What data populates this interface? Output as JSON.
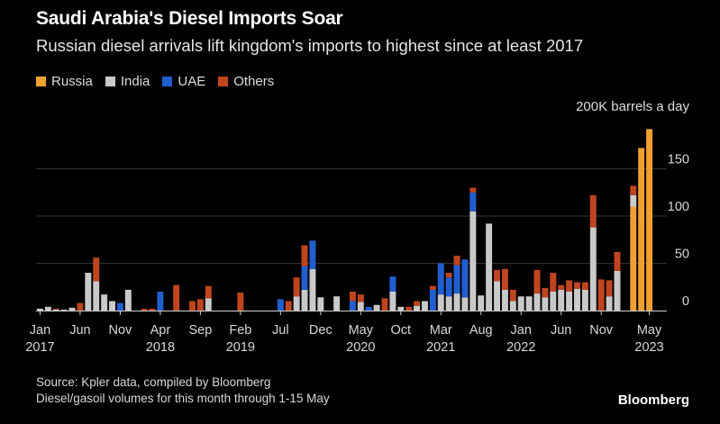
{
  "chart_data": {
    "type": "bar",
    "stacked": true,
    "title": "Saudi Arabia's Diesel Imports Soar",
    "subtitle": "Russian diesel arrivals lift kingdom's imports to highest since at least 2017",
    "unit_label": "200K barrels a day",
    "ylim": [
      0,
      200
    ],
    "yticks": [
      0,
      50,
      100,
      150
    ],
    "colors": {
      "Russia": "#f0a030",
      "India": "#c9c9c9",
      "UAE": "#1f5fd0",
      "Others": "#c0451e"
    },
    "legend": [
      "Russia",
      "India",
      "UAE",
      "Others"
    ],
    "x_ticks": [
      {
        "index": 0,
        "line1": "Jan",
        "line2": "2017"
      },
      {
        "index": 5,
        "line1": "Jun",
        "line2": ""
      },
      {
        "index": 10,
        "line1": "Nov",
        "line2": ""
      },
      {
        "index": 15,
        "line1": "Apr",
        "line2": "2018"
      },
      {
        "index": 20,
        "line1": "Sep",
        "line2": ""
      },
      {
        "index": 25,
        "line1": "Feb",
        "line2": "2019"
      },
      {
        "index": 30,
        "line1": "Jul",
        "line2": ""
      },
      {
        "index": 35,
        "line1": "Dec",
        "line2": ""
      },
      {
        "index": 40,
        "line1": "May",
        "line2": "2020"
      },
      {
        "index": 45,
        "line1": "Oct",
        "line2": ""
      },
      {
        "index": 50,
        "line1": "Mar",
        "line2": "2021"
      },
      {
        "index": 55,
        "line1": "Aug",
        "line2": ""
      },
      {
        "index": 60,
        "line1": "Jan",
        "line2": "2022"
      },
      {
        "index": 65,
        "line1": "Jun",
        "line2": ""
      },
      {
        "index": 70,
        "line1": "Nov",
        "line2": ""
      },
      {
        "index": 76,
        "line1": "May",
        "line2": "2023"
      }
    ],
    "series_order": [
      "Russia",
      "India",
      "UAE",
      "Others"
    ],
    "data": [
      {
        "Russia": 0,
        "India": 2,
        "UAE": 0,
        "Others": 0
      },
      {
        "Russia": 0,
        "India": 4,
        "UAE": 0,
        "Others": 0
      },
      {
        "Russia": 0,
        "India": 1,
        "UAE": 0,
        "Others": 1
      },
      {
        "Russia": 0,
        "India": 1,
        "UAE": 0,
        "Others": 0
      },
      {
        "Russia": 0,
        "India": 3,
        "UAE": 0,
        "Others": 0
      },
      {
        "Russia": 0,
        "India": 0,
        "UAE": 0,
        "Others": 8
      },
      {
        "Russia": 0,
        "India": 40,
        "UAE": 0,
        "Others": 0
      },
      {
        "Russia": 0,
        "India": 31,
        "UAE": 0,
        "Others": 25
      },
      {
        "Russia": 0,
        "India": 17,
        "UAE": 0,
        "Others": 0
      },
      {
        "Russia": 0,
        "India": 10,
        "UAE": 0,
        "Others": 0
      },
      {
        "Russia": 0,
        "India": 0,
        "UAE": 8,
        "Others": 0
      },
      {
        "Russia": 0,
        "India": 22,
        "UAE": 0,
        "Others": 0
      },
      {
        "Russia": 0,
        "India": 0,
        "UAE": 0,
        "Others": 0
      },
      {
        "Russia": 0,
        "India": 0,
        "UAE": 0,
        "Others": 2
      },
      {
        "Russia": 0,
        "India": 0,
        "UAE": 0,
        "Others": 2
      },
      {
        "Russia": 0,
        "India": 0,
        "UAE": 20,
        "Others": 0
      },
      {
        "Russia": 0,
        "India": 0,
        "UAE": 0,
        "Others": 0
      },
      {
        "Russia": 0,
        "India": 0,
        "UAE": 0,
        "Others": 27
      },
      {
        "Russia": 0,
        "India": 0,
        "UAE": 0,
        "Others": 0
      },
      {
        "Russia": 0,
        "India": 0,
        "UAE": 0,
        "Others": 10
      },
      {
        "Russia": 0,
        "India": 0,
        "UAE": 0,
        "Others": 12
      },
      {
        "Russia": 0,
        "India": 13,
        "UAE": 0,
        "Others": 13
      },
      {
        "Russia": 0,
        "India": 0,
        "UAE": 0,
        "Others": 0
      },
      {
        "Russia": 0,
        "India": 0,
        "UAE": 0,
        "Others": 0
      },
      {
        "Russia": 0,
        "India": 0,
        "UAE": 0,
        "Others": 0
      },
      {
        "Russia": 0,
        "India": 0,
        "UAE": 0,
        "Others": 19
      },
      {
        "Russia": 0,
        "India": 0,
        "UAE": 0,
        "Others": 0
      },
      {
        "Russia": 0,
        "India": 0,
        "UAE": 0,
        "Others": 0
      },
      {
        "Russia": 0,
        "India": 0,
        "UAE": 0,
        "Others": 0
      },
      {
        "Russia": 0,
        "India": 0,
        "UAE": 0,
        "Others": 0
      },
      {
        "Russia": 0,
        "India": 0,
        "UAE": 12,
        "Others": 0
      },
      {
        "Russia": 0,
        "India": 0,
        "UAE": 0,
        "Others": 10
      },
      {
        "Russia": 0,
        "India": 15,
        "UAE": 0,
        "Others": 20
      },
      {
        "Russia": 0,
        "India": 22,
        "UAE": 25,
        "Others": 22
      },
      {
        "Russia": 0,
        "India": 44,
        "UAE": 30,
        "Others": 0
      },
      {
        "Russia": 0,
        "India": 14,
        "UAE": 0,
        "Others": 0
      },
      {
        "Russia": 0,
        "India": 0,
        "UAE": 0,
        "Others": 0
      },
      {
        "Russia": 0,
        "India": 15,
        "UAE": 0,
        "Others": 0
      },
      {
        "Russia": 0,
        "India": 0,
        "UAE": 0,
        "Others": 0
      },
      {
        "Russia": 0,
        "India": 0,
        "UAE": 10,
        "Others": 10
      },
      {
        "Russia": 0,
        "India": 9,
        "UAE": 0,
        "Others": 8
      },
      {
        "Russia": 0,
        "India": 0,
        "UAE": 4,
        "Others": 0
      },
      {
        "Russia": 0,
        "India": 6,
        "UAE": 0,
        "Others": 0
      },
      {
        "Russia": 0,
        "India": 0,
        "UAE": 0,
        "Others": 13
      },
      {
        "Russia": 0,
        "India": 20,
        "UAE": 16,
        "Others": 0
      },
      {
        "Russia": 0,
        "India": 4,
        "UAE": 0,
        "Others": 0
      },
      {
        "Russia": 0,
        "India": 0,
        "UAE": 0,
        "Others": 4
      },
      {
        "Russia": 0,
        "India": 5,
        "UAE": 0,
        "Others": 5
      },
      {
        "Russia": 0,
        "India": 10,
        "UAE": 0,
        "Others": 0
      },
      {
        "Russia": 0,
        "India": 0,
        "UAE": 22,
        "Others": 4
      },
      {
        "Russia": 0,
        "India": 17,
        "UAE": 33,
        "Others": 0
      },
      {
        "Russia": 0,
        "India": 15,
        "UAE": 20,
        "Others": 5
      },
      {
        "Russia": 0,
        "India": 18,
        "UAE": 30,
        "Others": 10
      },
      {
        "Russia": 0,
        "India": 14,
        "UAE": 40,
        "Others": 0
      },
      {
        "Russia": 0,
        "India": 105,
        "UAE": 20,
        "Others": 5
      },
      {
        "Russia": 0,
        "India": 16,
        "UAE": 0,
        "Others": 0
      },
      {
        "Russia": 0,
        "India": 92,
        "UAE": 0,
        "Others": 0
      },
      {
        "Russia": 0,
        "India": 31,
        "UAE": 0,
        "Others": 12
      },
      {
        "Russia": 0,
        "India": 22,
        "UAE": 0,
        "Others": 22
      },
      {
        "Russia": 0,
        "India": 10,
        "UAE": 0,
        "Others": 12
      },
      {
        "Russia": 0,
        "India": 15,
        "UAE": 0,
        "Others": 0
      },
      {
        "Russia": 0,
        "India": 15,
        "UAE": 0,
        "Others": 0
      },
      {
        "Russia": 0,
        "India": 18,
        "UAE": 0,
        "Others": 25
      },
      {
        "Russia": 0,
        "India": 14,
        "UAE": 0,
        "Others": 10
      },
      {
        "Russia": 0,
        "India": 20,
        "UAE": 0,
        "Others": 20
      },
      {
        "Russia": 0,
        "India": 22,
        "UAE": 0,
        "Others": 5
      },
      {
        "Russia": 0,
        "India": 20,
        "UAE": 0,
        "Others": 12
      },
      {
        "Russia": 0,
        "India": 23,
        "UAE": 0,
        "Others": 7
      },
      {
        "Russia": 0,
        "India": 22,
        "UAE": 0,
        "Others": 8
      },
      {
        "Russia": 0,
        "India": 88,
        "UAE": 0,
        "Others": 34
      },
      {
        "Russia": 0,
        "India": 0,
        "UAE": 0,
        "Others": 33
      },
      {
        "Russia": 0,
        "India": 15,
        "UAE": 0,
        "Others": 17
      },
      {
        "Russia": 0,
        "India": 42,
        "UAE": 0,
        "Others": 20
      },
      {
        "Russia": 0,
        "India": 0,
        "UAE": 0,
        "Others": 0
      },
      {
        "Russia": 110,
        "India": 12,
        "UAE": 0,
        "Others": 10
      },
      {
        "Russia": 172,
        "India": 0,
        "UAE": 0,
        "Others": 0
      },
      {
        "Russia": 192,
        "India": 0,
        "UAE": 0,
        "Others": 0
      }
    ]
  },
  "footer": {
    "source": "Source: Kpler data, compiled by Bloomberg",
    "note": "Diesel/gasoil volumes for this month through 1-15 May",
    "brand": "Bloomberg"
  }
}
